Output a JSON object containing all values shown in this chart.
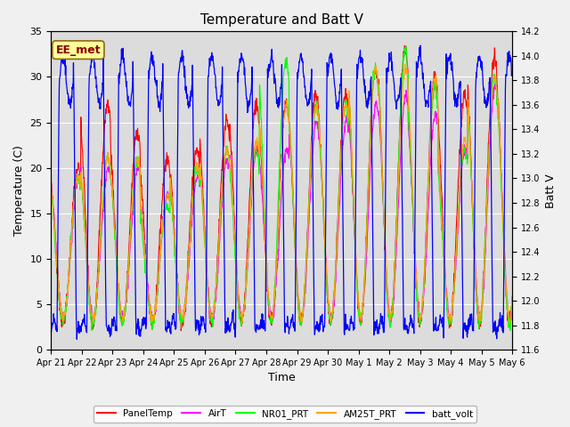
{
  "title": "Temperature and Batt V",
  "xlabel": "Time",
  "ylabel_left": "Temperature (C)",
  "ylabel_right": "Batt V",
  "annotation": "EE_met",
  "annotation_color": "#8B0000",
  "annotation_bg": "#FFFF99",
  "left_ylim": [
    0,
    35
  ],
  "right_ylim": [
    11.6,
    14.2
  ],
  "right_yticks": [
    11.6,
    11.8,
    12.0,
    12.2,
    12.4,
    12.6,
    12.8,
    13.0,
    13.2,
    13.4,
    13.6,
    13.8,
    14.0,
    14.2
  ],
  "left_yticks": [
    0,
    5,
    10,
    15,
    20,
    25,
    30,
    35
  ],
  "xtick_labels": [
    "Apr 21",
    "Apr 22",
    "Apr 23",
    "Apr 24",
    "Apr 25",
    "Apr 26",
    "Apr 27",
    "Apr 28",
    "Apr 29",
    "Apr 30",
    "May 1",
    "May 2",
    "May 3",
    "May 4",
    "May 5",
    "May 6"
  ],
  "series_colors": {
    "PanelTemp": "#FF0000",
    "AirT": "#FF00FF",
    "NR01_PRT": "#00FF00",
    "AM25T_PRT": "#FFA500",
    "batt_volt": "#0000FF"
  },
  "background_color": "#DCDCDC",
  "grid_color": "#FFFFFF",
  "fig_bg": "#F0F0F0",
  "figsize": [
    6.4,
    4.8
  ],
  "dpi": 100
}
